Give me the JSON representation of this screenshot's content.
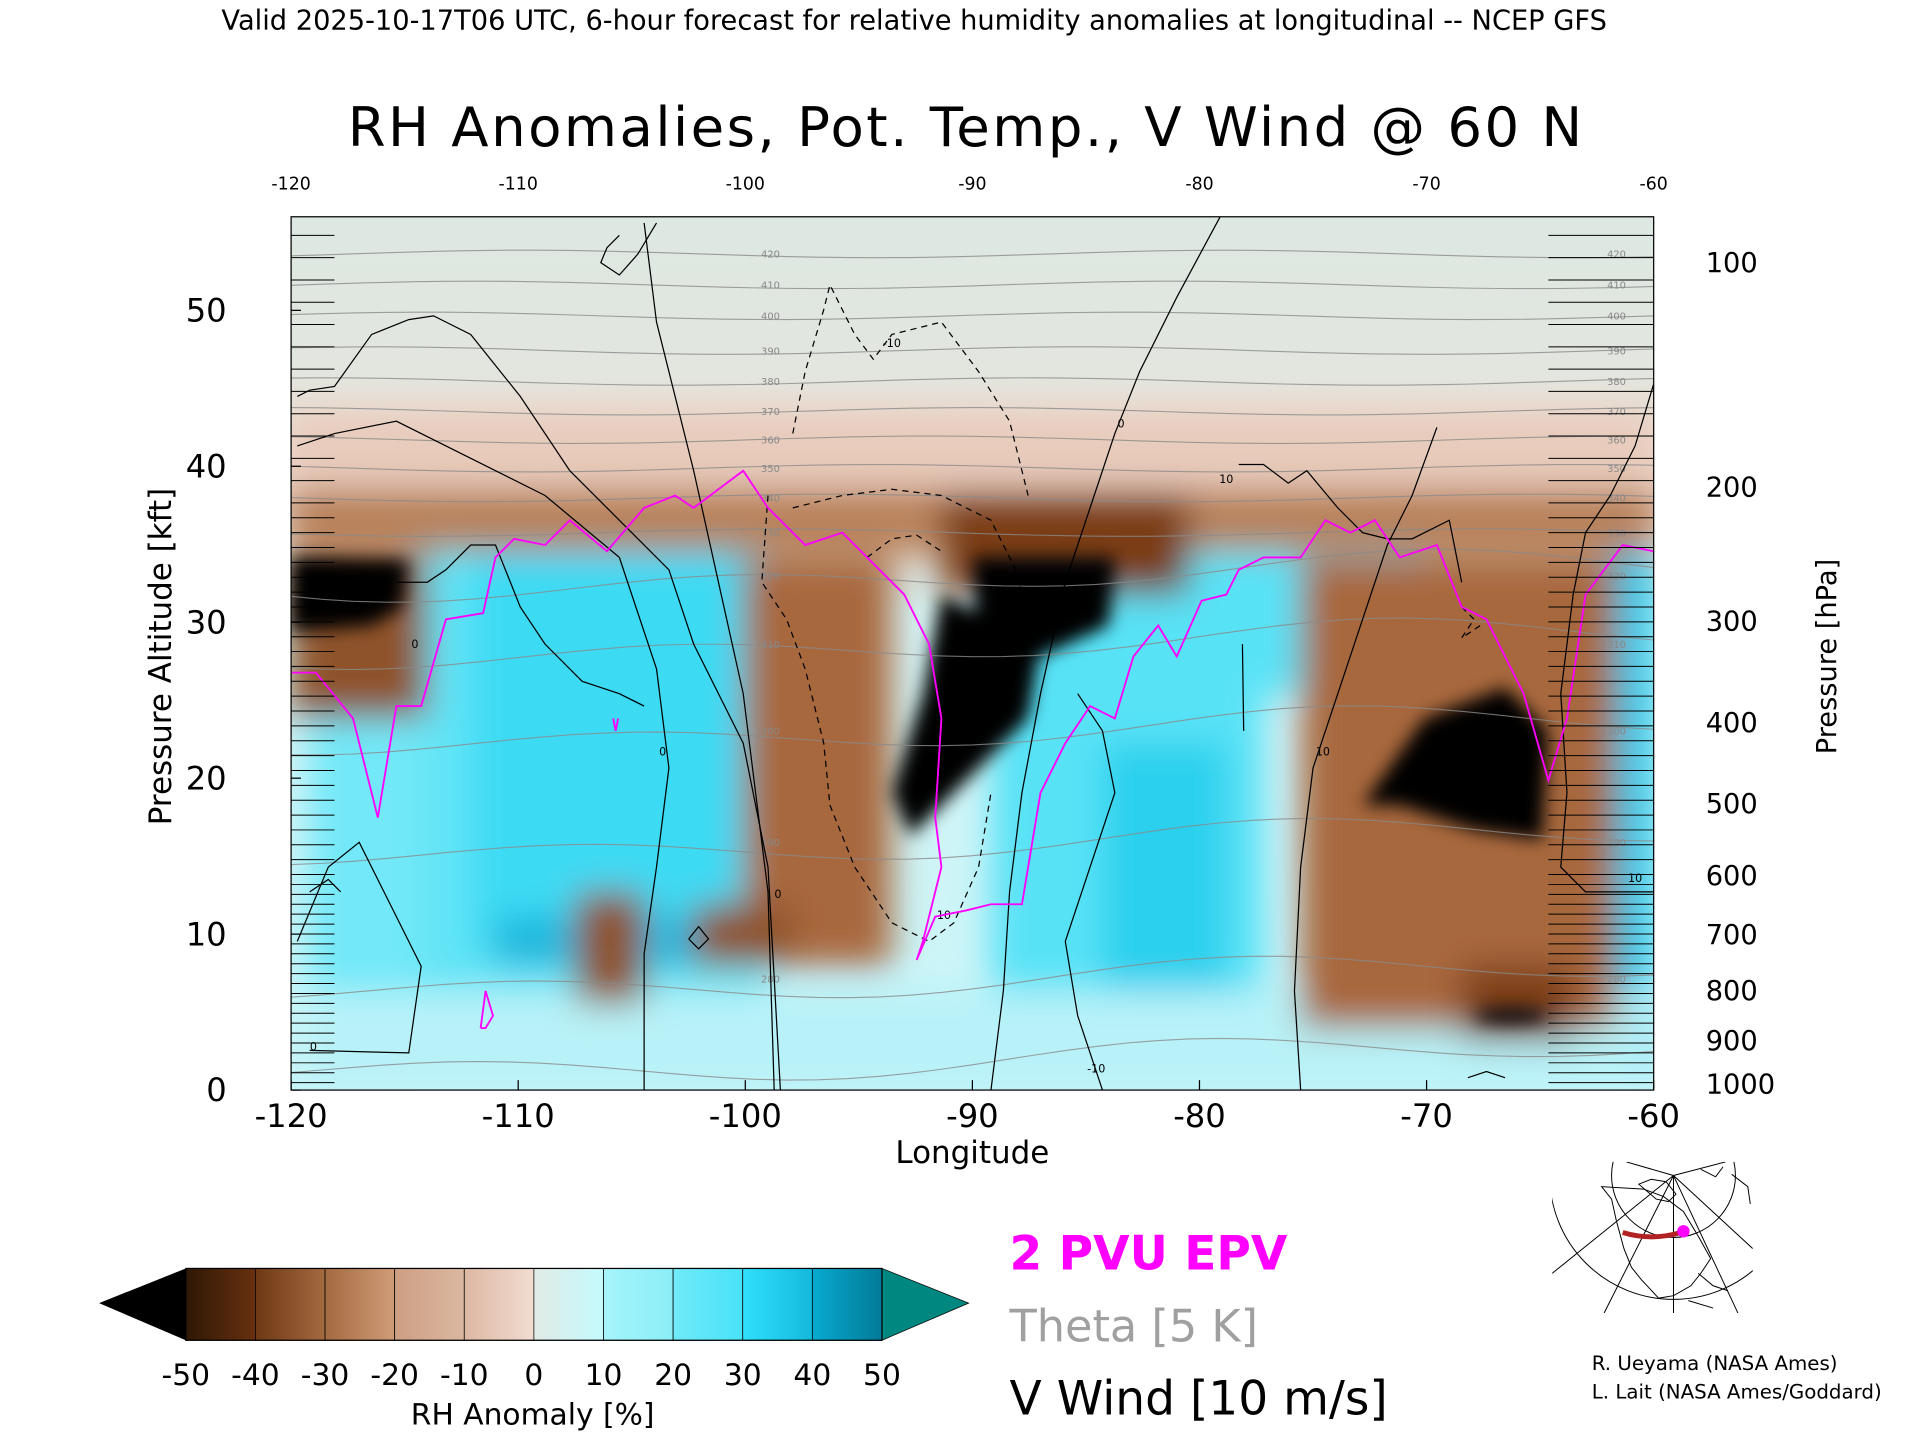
{
  "header": {
    "subtitle": "Valid 2025-10-17T06 UTC, 6-hour forecast for relative humidity anomalies at longitudinal -- NCEP GFS"
  },
  "chart_data": {
    "type": "heatmap",
    "title": "RH Anomalies, Pot. Temp., V Wind @ 60 N",
    "xlabel": "Longitude",
    "ylabel_left": "Pressure Altitude [kft]",
    "ylabel_right": "Pressure [hPa]",
    "xlim": [
      -120,
      -60
    ],
    "ylim": [
      0,
      56
    ],
    "x_ticks": [
      "-120",
      "-110",
      "-100",
      "-90",
      "-80",
      "-70",
      "-60"
    ],
    "x_tick_values": [
      -120,
      -110,
      -100,
      -90,
      -80,
      -70,
      -60
    ],
    "top_x_ticks": [
      "-120",
      "-110",
      "-100",
      "-90",
      "-80",
      "-70",
      "-60"
    ],
    "y_ticks": [
      "0",
      "10",
      "20",
      "30",
      "40",
      "50"
    ],
    "y_tick_values": [
      0,
      10,
      20,
      30,
      40,
      50
    ],
    "pressure_ticks": [
      "100",
      "200",
      "300",
      "400",
      "500",
      "600",
      "700",
      "800",
      "900",
      "1000"
    ],
    "pressure_tick_alt_kft": [
      53.1,
      38.7,
      30.1,
      23.6,
      18.4,
      13.8,
      10.0,
      6.4,
      3.2,
      0.4
    ],
    "theta_labels": [
      "420",
      "410",
      "400",
      "390",
      "380",
      "370",
      "360",
      "350",
      "340",
      "330",
      "320",
      "310",
      "300",
      "290",
      "280"
    ],
    "wind_contour_labels": [
      "0",
      "10",
      "-10"
    ],
    "colorbar": {
      "label": "RH Anomaly [%]",
      "ticks": [
        "-50",
        "-40",
        "-30",
        "-20",
        "-10",
        "0",
        "10",
        "20",
        "30",
        "40",
        "50"
      ],
      "colors": [
        "#5a2e0c",
        "#8a4e22",
        "#b47a50",
        "#cfa283",
        "#e6cbbd",
        "#cdf8fb",
        "#9cf0f8",
        "#62e8f8",
        "#2fd8f4",
        "#0a93b4"
      ],
      "under_color": "#000000",
      "over_color": "#00877f"
    },
    "legend": {
      "epv": "2 PVU EPV",
      "theta": "Theta [5 K]",
      "vwind": "V Wind [10 m/s]",
      "epv_color": "#ff00ff",
      "theta_color": "#a0a0a0",
      "vwind_color": "#000000"
    }
  },
  "credits": {
    "line1": "R. Ueyama (NASA Ames)",
    "line2": "L. Lait (NASA Ames/Goddard)"
  },
  "inset_map": {
    "track_color": "#b22222",
    "marker_color": "#ff00ff"
  }
}
